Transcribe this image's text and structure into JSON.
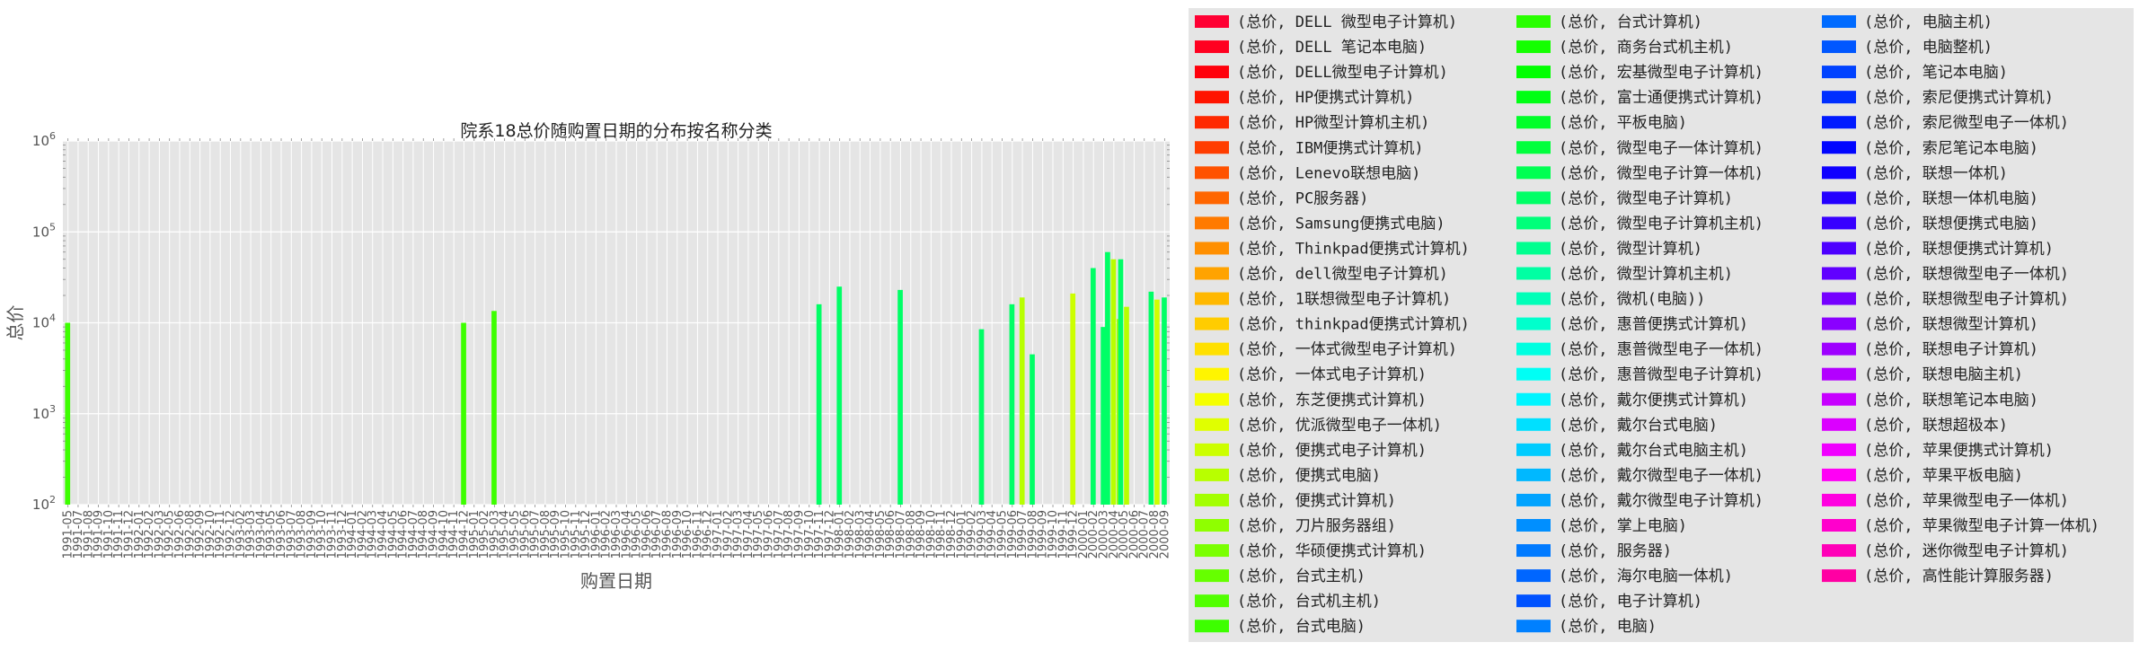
{
  "chart_data": {
    "type": "bar",
    "title": "院系18总价随购置日期的分布按名称分类",
    "xlabel": "购置日期",
    "ylabel": "总价",
    "yscale": "log",
    "ylim": [
      100,
      1000000
    ],
    "yticks": [
      "10^2",
      "10^3",
      "10^4",
      "10^5",
      "10^6"
    ],
    "grid": true,
    "legend_position": "right",
    "categories": [
      "1991-05",
      "1991-07",
      "1991-08",
      "1991-09",
      "1991-10",
      "1991-11",
      "1991-12",
      "1992-01",
      "1992-02",
      "1992-03",
      "1992-05",
      "1992-06",
      "1992-08",
      "1992-09",
      "1992-10",
      "1992-11",
      "1992-12",
      "1993-02",
      "1993-03",
      "1993-04",
      "1993-05",
      "1993-06",
      "1993-07",
      "1993-08",
      "1993-09",
      "1993-10",
      "1993-11",
      "1993-12",
      "1994-01",
      "1994-02",
      "1994-03",
      "1994-04",
      "1994-05",
      "1994-06",
      "1994-07",
      "1994-08",
      "1994-09",
      "1994-10",
      "1994-11",
      "1994-12",
      "1995-01",
      "1995-02",
      "1995-03",
      "1995-04",
      "1995-05",
      "1995-06",
      "1995-07",
      "1995-08",
      "1995-09",
      "1995-10",
      "1995-11",
      "1995-12",
      "1996-01",
      "1996-02",
      "1996-03",
      "1996-04",
      "1996-05",
      "1996-06",
      "1996-07",
      "1996-08",
      "1996-09",
      "1996-10",
      "1996-11",
      "1996-12",
      "1997-01",
      "1997-02",
      "1997-03",
      "1997-04",
      "1997-05",
      "1997-06",
      "1997-07",
      "1997-08",
      "1997-09",
      "1997-10",
      "1997-11",
      "1997-12",
      "1998-01",
      "1998-02",
      "1998-03",
      "1998-04",
      "1998-05",
      "1998-06",
      "1998-07",
      "1998-08",
      "1998-09",
      "1998-10",
      "1998-11",
      "1998-12",
      "1999-01",
      "1999-02",
      "1999-03",
      "1999-04",
      "1999-05",
      "1999-06",
      "1999-07",
      "1999-08",
      "1999-09",
      "1999-10",
      "1999-11",
      "1999-12",
      "2000-01",
      "2000-02",
      "2000-03",
      "2000-04",
      "2000-05",
      "2000-06",
      "2000-07",
      "2000-08",
      "2000-09"
    ],
    "bars": [
      {
        "category": "1991-05",
        "series": "(总价, 台式电脑)",
        "value": 10000
      },
      {
        "category": "1994-12",
        "series": "(总价, 台式电脑)",
        "value": 10000
      },
      {
        "category": "1995-03",
        "series": "(总价, 台式电脑)",
        "value": 13500
      },
      {
        "category": "1997-11",
        "series": "(总价, 微型电子计算机)",
        "value": 16000
      },
      {
        "category": "1998-01",
        "series": "(总价, 微型电子计算机)",
        "value": 25000
      },
      {
        "category": "1998-07",
        "series": "(总价, 微型电子计算机)",
        "value": 23000
      },
      {
        "category": "1999-03",
        "series": "(总价, 微型电子计算机)",
        "value": 8500
      },
      {
        "category": "1999-06",
        "series": "(总价, 微型电子计算机)",
        "value": 16000
      },
      {
        "category": "1999-07",
        "series": "(总价, 便携式电脑)",
        "value": 19000
      },
      {
        "category": "1999-08",
        "series": "(总价, 微型电子计算机)",
        "value": 4500
      },
      {
        "category": "1999-12",
        "series": "(总价, 便携式电子计算机)",
        "value": 21000
      },
      {
        "category": "2000-02",
        "series": "(总价, 微型电子计算机)",
        "value": 40000
      },
      {
        "category": "2000-03",
        "series": "(总价, 微型电子计算机)",
        "value": 9000
      },
      {
        "category": "2000-04",
        "series": "(总价, 微型电子计算机)",
        "value": 60000
      },
      {
        "category": "2000-04",
        "series": "(总价, 便携式电脑)",
        "value": 50000
      },
      {
        "category": "2000-04",
        "series": "(总价, 便携式计算机)",
        "value": 11000
      },
      {
        "category": "2000-05",
        "series": "(总价, 微型电子计算机)",
        "value": 50000
      },
      {
        "category": "2000-05",
        "series": "(总价, 便携式电脑)",
        "value": 15000
      },
      {
        "category": "2000-08",
        "series": "(总价, 微型电子计算机)",
        "value": 22000
      },
      {
        "category": "2000-08",
        "series": "(总价, 便携式电子计算机)",
        "value": 18000
      },
      {
        "category": "2000-09",
        "series": "(总价, 微型电子计算机)",
        "value": 19000
      }
    ],
    "legend": [
      {
        "label": "(总价, DELL 微型电子计算机)",
        "color": "#ff0033"
      },
      {
        "label": "(总价, DELL 笔记本电脑)",
        "color": "#ff0020"
      },
      {
        "label": "(总价, DELL微型电子计算机)",
        "color": "#ff000c"
      },
      {
        "label": "(总价, HP便携式计算机)",
        "color": "#ff1400"
      },
      {
        "label": "(总价, HP微型计算机主机)",
        "color": "#ff2900"
      },
      {
        "label": "(总价, IBM便携式计算机)",
        "color": "#ff3d00"
      },
      {
        "label": "(总价, Lenevo联想电脑)",
        "color": "#ff5200"
      },
      {
        "label": "(总价, PC服务器)",
        "color": "#ff6600"
      },
      {
        "label": "(总价, Samsung便携式电脑)",
        "color": "#ff7a00"
      },
      {
        "label": "(总价, Thinkpad便携式计算机)",
        "color": "#ff8f00"
      },
      {
        "label": "(总价, dell微型电子计算机)",
        "color": "#ffa300"
      },
      {
        "label": "(总价, 1联想微型电子计算机)",
        "color": "#ffb800"
      },
      {
        "label": "(总价, thinkpad便携式计算机)",
        "color": "#ffcc00"
      },
      {
        "label": "(总价, 一体式微型电子计算机)",
        "color": "#ffe000"
      },
      {
        "label": "(总价, 一体式电子计算机)",
        "color": "#fff500"
      },
      {
        "label": "(总价, 东芝便携式计算机)",
        "color": "#f5ff00"
      },
      {
        "label": "(总价, 优派微型电子一体机)",
        "color": "#e0ff00"
      },
      {
        "label": "(总价, 便携式电子计算机)",
        "color": "#ccff00"
      },
      {
        "label": "(总价, 便携式电脑)",
        "color": "#b8ff00"
      },
      {
        "label": "(总价, 便携式计算机)",
        "color": "#a3ff00"
      },
      {
        "label": "(总价, 刀片服务器组)",
        "color": "#8fff00"
      },
      {
        "label": "(总价, 华硕便携式计算机)",
        "color": "#7aff00"
      },
      {
        "label": "(总价, 台式主机)",
        "color": "#66ff00"
      },
      {
        "label": "(总价, 台式机主机)",
        "color": "#52ff00"
      },
      {
        "label": "(总价, 台式电脑)",
        "color": "#3dff00"
      },
      {
        "label": "(总价, 台式计算机)",
        "color": "#29ff00"
      },
      {
        "label": "(总价, 商务台式机主机)",
        "color": "#14ff00"
      },
      {
        "label": "(总价, 宏基微型电子计算机)",
        "color": "#00ff00"
      },
      {
        "label": "(总价, 富士通便携式计算机)",
        "color": "#00ff14"
      },
      {
        "label": "(总价, 平板电脑)",
        "color": "#00ff29"
      },
      {
        "label": "(总价, 微型电子一体计算机)",
        "color": "#00ff3d"
      },
      {
        "label": "(总价, 微型电子计算一体机)",
        "color": "#00ff52"
      },
      {
        "label": "(总价, 微型电子计算机)",
        "color": "#00ff66"
      },
      {
        "label": "(总价, 微型电子计算机主机)",
        "color": "#00ff7a"
      },
      {
        "label": "(总价, 微型计算机)",
        "color": "#00ff8f"
      },
      {
        "label": "(总价, 微型计算机主机)",
        "color": "#00ffa3"
      },
      {
        "label": "(总价, 微机(电脑))",
        "color": "#00ffb8"
      },
      {
        "label": "(总价, 惠普便携式计算机)",
        "color": "#00ffcc"
      },
      {
        "label": "(总价, 惠普微型电子一体机)",
        "color": "#00ffe0"
      },
      {
        "label": "(总价, 惠普微型电子计算机)",
        "color": "#00fff5"
      },
      {
        "label": "(总价, 戴尔便携式计算机)",
        "color": "#00f5ff"
      },
      {
        "label": "(总价, 戴尔台式电脑)",
        "color": "#00e0ff"
      },
      {
        "label": "(总价, 戴尔台式电脑主机)",
        "color": "#00ccff"
      },
      {
        "label": "(总价, 戴尔微型电子一体机)",
        "color": "#00b8ff"
      },
      {
        "label": "(总价, 戴尔微型电子计算机)",
        "color": "#00a3ff"
      },
      {
        "label": "(总价, 掌上电脑)",
        "color": "#008fff"
      },
      {
        "label": "(总价, 服务器)",
        "color": "#007aff"
      },
      {
        "label": "(总价, 海尔电脑一体机)",
        "color": "#0066ff"
      },
      {
        "label": "(总价, 电子计算机)",
        "color": "#0052ff"
      },
      {
        "label": "(总价, 电脑)",
        "color": "#0080ff"
      },
      {
        "label": "(总价, 电脑主机)",
        "color": "#006bff"
      },
      {
        "label": "(总价, 电脑整机)",
        "color": "#0057ff"
      },
      {
        "label": "(总价, 笔记本电脑)",
        "color": "#0042ff"
      },
      {
        "label": "(总价, 索尼便携式计算机)",
        "color": "#002eff"
      },
      {
        "label": "(总价, 索尼微型电子一体机)",
        "color": "#001aff"
      },
      {
        "label": "(总价, 索尼笔记本电脑)",
        "color": "#0005ff"
      },
      {
        "label": "(总价, 联想一体机)",
        "color": "#0f00ff"
      },
      {
        "label": "(总价, 联想一体机电脑)",
        "color": "#2400ff"
      },
      {
        "label": "(总价, 联想便携式电脑)",
        "color": "#3800ff"
      },
      {
        "label": "(总价, 联想便携式计算机)",
        "color": "#4d00ff"
      },
      {
        "label": "(总价, 联想微型电子一体机)",
        "color": "#6100ff"
      },
      {
        "label": "(总价, 联想微型电子计算机)",
        "color": "#7500ff"
      },
      {
        "label": "(总价, 联想微型计算机)",
        "color": "#8a00ff"
      },
      {
        "label": "(总价, 联想电子计算机)",
        "color": "#9e00ff"
      },
      {
        "label": "(总价, 联想电脑主机)",
        "color": "#b300ff"
      },
      {
        "label": "(总价, 联想笔记本电脑)",
        "color": "#c700ff"
      },
      {
        "label": "(总价, 联想超极本)",
        "color": "#db00ff"
      },
      {
        "label": "(总价, 苹果便携式计算机)",
        "color": "#f000ff"
      },
      {
        "label": "(总价, 苹果平板电脑)",
        "color": "#ff00f5"
      },
      {
        "label": "(总价, 苹果微型电子一体机)",
        "color": "#ff00e0"
      },
      {
        "label": "(总价, 苹果微型电子计算一体机)",
        "color": "#ff00cc"
      },
      {
        "label": "(总价, 迷你微型电子计算机)",
        "color": "#ff00b8"
      },
      {
        "label": "(总价, 高性能计算服务器)",
        "color": "#ff00a3"
      }
    ]
  }
}
